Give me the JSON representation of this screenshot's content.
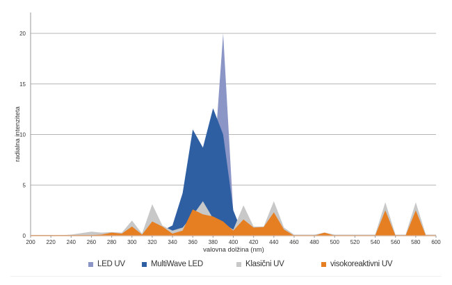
{
  "chart_data": {
    "type": "area",
    "title": "",
    "xlabel": "valovna dolžina (nm)",
    "ylabel": "radialna intenziteta",
    "xlim": [
      200,
      600
    ],
    "ylim": [
      0,
      20
    ],
    "x_ticks": [
      200,
      220,
      240,
      260,
      280,
      300,
      320,
      340,
      360,
      380,
      400,
      420,
      440,
      460,
      480,
      500,
      520,
      540,
      560,
      580,
      600
    ],
    "y_ticks": [
      0,
      5,
      10,
      15,
      20
    ],
    "grid": true,
    "legend_position": "bottom",
    "x": [
      200,
      210,
      220,
      230,
      240,
      250,
      260,
      270,
      280,
      290,
      300,
      310,
      320,
      330,
      340,
      350,
      360,
      370,
      380,
      390,
      400,
      410,
      420,
      430,
      440,
      450,
      460,
      470,
      480,
      490,
      500,
      510,
      520,
      530,
      540,
      550,
      560,
      570,
      580,
      590,
      600
    ],
    "series": [
      {
        "name": "LED UV",
        "color": "#8c96c6",
        "values": [
          0,
          0,
          0,
          0,
          0,
          0,
          0,
          0,
          0,
          0,
          0,
          0,
          0,
          0,
          0,
          0,
          0,
          0,
          6,
          20,
          2.2,
          0,
          0,
          0,
          0,
          0,
          0,
          0,
          0,
          0,
          0,
          0,
          0,
          0,
          0,
          0,
          0,
          0,
          0,
          0,
          0
        ]
      },
      {
        "name": "MultiWave LED",
        "color": "#2e5fa3",
        "values": [
          0,
          0,
          0,
          0,
          0,
          0,
          0,
          0,
          0,
          0,
          0,
          0,
          0,
          0.5,
          1.0,
          4.2,
          10.5,
          8.7,
          12.6,
          10.0,
          2.5,
          0,
          0,
          0,
          0,
          0,
          0,
          0,
          0,
          0,
          0,
          0,
          0,
          0,
          0,
          0,
          0,
          0,
          0,
          0,
          0
        ]
      },
      {
        "name": "Klasični UV",
        "color": "#c8c8c8",
        "values": [
          0.05,
          0.05,
          0.05,
          0.05,
          0.1,
          0.25,
          0.4,
          0.3,
          0.35,
          0.3,
          1.5,
          0.2,
          3.1,
          1.0,
          0.5,
          0.8,
          2.0,
          3.4,
          1.7,
          1.2,
          0.6,
          3.0,
          0.9,
          0.9,
          3.4,
          0.8,
          0.1,
          0.1,
          0.1,
          0.3,
          0.1,
          0.1,
          0.1,
          0.1,
          0.1,
          3.3,
          0.1,
          0.1,
          3.3,
          0.1,
          0.1
        ]
      },
      {
        "name": "visokoreaktivni UV",
        "color": "#e67e22",
        "values": [
          0.05,
          0.05,
          0.05,
          0.05,
          0.05,
          0.05,
          0.05,
          0.1,
          0.3,
          0.2,
          0.9,
          0.1,
          1.4,
          0.9,
          0.2,
          0.5,
          2.6,
          2.1,
          1.9,
          1.4,
          0.5,
          1.6,
          0.8,
          0.85,
          2.3,
          0.6,
          0,
          0,
          0,
          0.3,
          0,
          0,
          0,
          0,
          0,
          2.5,
          0,
          0,
          2.5,
          0,
          0
        ]
      }
    ]
  },
  "legend": {
    "items": [
      {
        "label": "LED UV",
        "color": "#8c96c6"
      },
      {
        "label": "MultiWave LED",
        "color": "#2e5fa3"
      },
      {
        "label": "Klasični UV",
        "color": "#c8c8c8"
      },
      {
        "label": "visokoreaktivni UV",
        "color": "#e67e22"
      }
    ]
  },
  "axes": {
    "xlabel": "valovna dolžina (nm)",
    "ylabel": "radialna intenziteta"
  }
}
